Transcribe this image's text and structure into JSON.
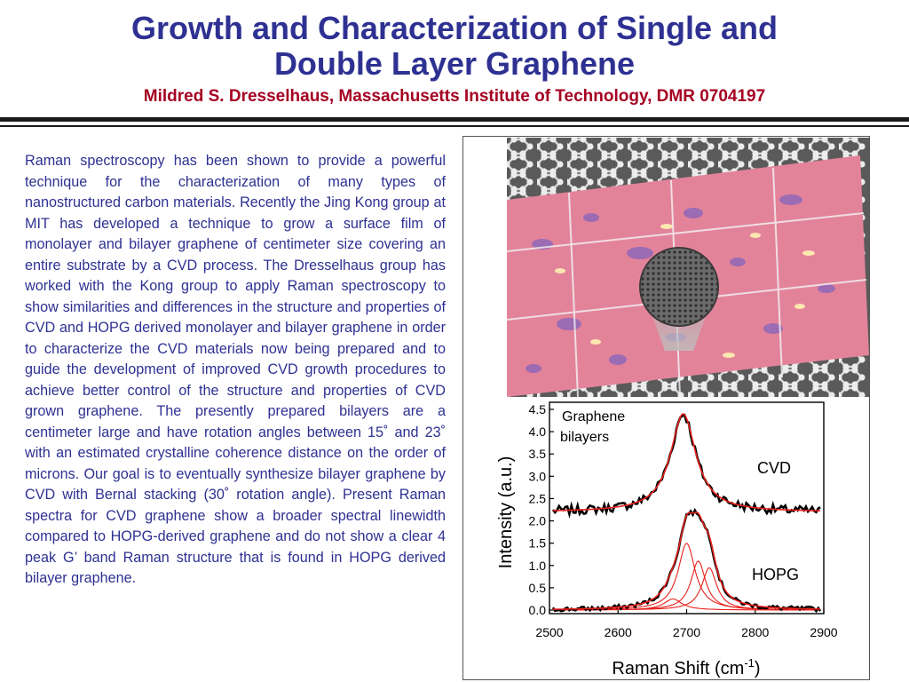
{
  "header": {
    "title_line1": "Growth and Characterization of Single and",
    "title_line2": "Double Layer Graphene",
    "byline": "Mildred S. Dresselhaus, Massachusetts Institute of Technology, DMR 0704197"
  },
  "body_text": "Raman spectroscopy has been shown to provide a powerful technique for the characterization of many types of nanostructured carbon materials. Recently the Jing Kong group at MIT has developed a technique to grow a surface film of monolayer and bilayer graphene of centimeter size covering an entire substrate by a CVD process. The Dresselhaus group has worked with the Kong group to apply Raman spectroscopy to show similarities and differences in the structure and properties of CVD and HOPG derived monolayer and bilayer graphene in order to characterize the CVD materials now being prepared and to guide the development of improved CVD growth procedures to achieve better control of the structure and properties of CVD grown graphene. The presently prepared bilayers are a centimeter large and have rotation angles between 15˚ and 23˚ with an estimated crystalline coherence distance on the order of microns. Our goal is to eventually synthesize bilayer graphene by CVD with Bernal stacking (30˚ rotation angle). Present Raman spectra for CVD graphene show a broader spectral linewidth compared to HOPG-derived graphene and do not show a clear 4 peak G’ band Raman structure that is found  in HOPG derived bilayer graphene.",
  "colors": {
    "title": "#2e3192",
    "byline": "#a50021",
    "body_text": "#2e3192",
    "fit_curve": "#e8201c",
    "data_curve": "#000000"
  },
  "chart_data": {
    "type": "line",
    "xlabel": "Raman Shift (cm",
    "xlabel_sup": "-1",
    "xlabel_end": ")",
    "ylabel": "Intensity (a.u.)",
    "xlim": [
      2500,
      2900
    ],
    "ylim": [
      0,
      4.5
    ],
    "x_ticks": [
      2500,
      2600,
      2700,
      2800,
      2900
    ],
    "x_tick_labels": [
      "2500",
      "2600",
      "2700",
      "2800",
      "2900"
    ],
    "y_ticks": [
      0,
      0.5,
      1,
      1.5,
      2,
      2.5,
      3,
      3.5,
      4,
      4.5
    ],
    "y_tick_labels": [
      "0.0",
      "0.5",
      "1.0",
      "1.5",
      "2.0",
      "2.5",
      "3.0",
      "3.5",
      "4.0",
      "4.5"
    ],
    "annotations": {
      "legend_line1": "Graphene",
      "legend_line2": "bilayers",
      "cvd": "CVD",
      "hopg": "HOPG"
    },
    "series": [
      {
        "name": "CVD",
        "baseline": 2.2,
        "peaks": [
          {
            "center": 2695,
            "height": 2.2,
            "fwhm": 45
          }
        ]
      },
      {
        "name": "HOPG",
        "baseline": 0.0,
        "peaks": [
          {
            "center": 2700,
            "height": 1.5,
            "fwhm": 30
          },
          {
            "center": 2717,
            "height": 1.1,
            "fwhm": 26
          },
          {
            "center": 2733,
            "height": 0.95,
            "fwhm": 26
          },
          {
            "center": 2680,
            "height": 0.25,
            "fwhm": 32
          }
        ]
      }
    ]
  }
}
